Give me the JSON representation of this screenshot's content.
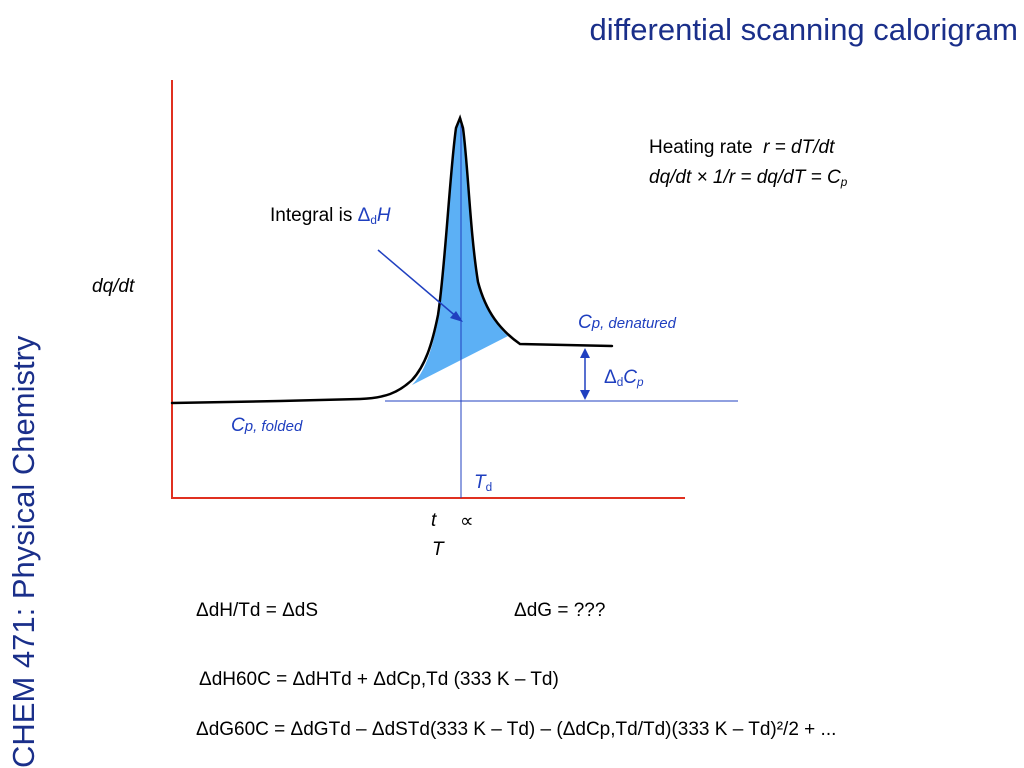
{
  "slide": {
    "title": "differential scanning calorigram",
    "side_title": "CHEM 471: Physical Chemistry"
  },
  "diagram": {
    "y_axis_label": "dq/dt",
    "x_axis_label_t": "t",
    "proportional_symbol": "∝",
    "x_axis_label_T": "T",
    "integral_prefix": "Integral is ",
    "delta": "Δ",
    "sub_d": "d",
    "H": "H",
    "C": "C",
    "p": "p",
    "T": "T",
    "cp_denatured_sub": "p, denatured",
    "cp_folded_sub": "p, folded",
    "heating_rate_label": "Heating rate",
    "heating_rate_formula": "r = dT/dt",
    "relation_line": "dq/dt × 1/r = dq/dT = C",
    "relation_sub": "p"
  },
  "equations": {
    "eq1": "ΔdH/Td = ΔdS",
    "eq2": "ΔdG = ???",
    "eq3": "ΔdH60C = ΔdHTd + ΔdCp,Td (333 K – Td)",
    "eq4": "ΔdG60C = ΔdGTd – ΔdSTd(333 K – Td) – (ΔdCp,Td/Td)(333 K – Td)²/2 + ..."
  },
  "colors": {
    "axis": "#e03020",
    "peak_fill": "#5cb0f5",
    "reference_line": "#2040c0",
    "label_blue": "#1f3fbf",
    "title_navy": "#1a2f8a"
  }
}
